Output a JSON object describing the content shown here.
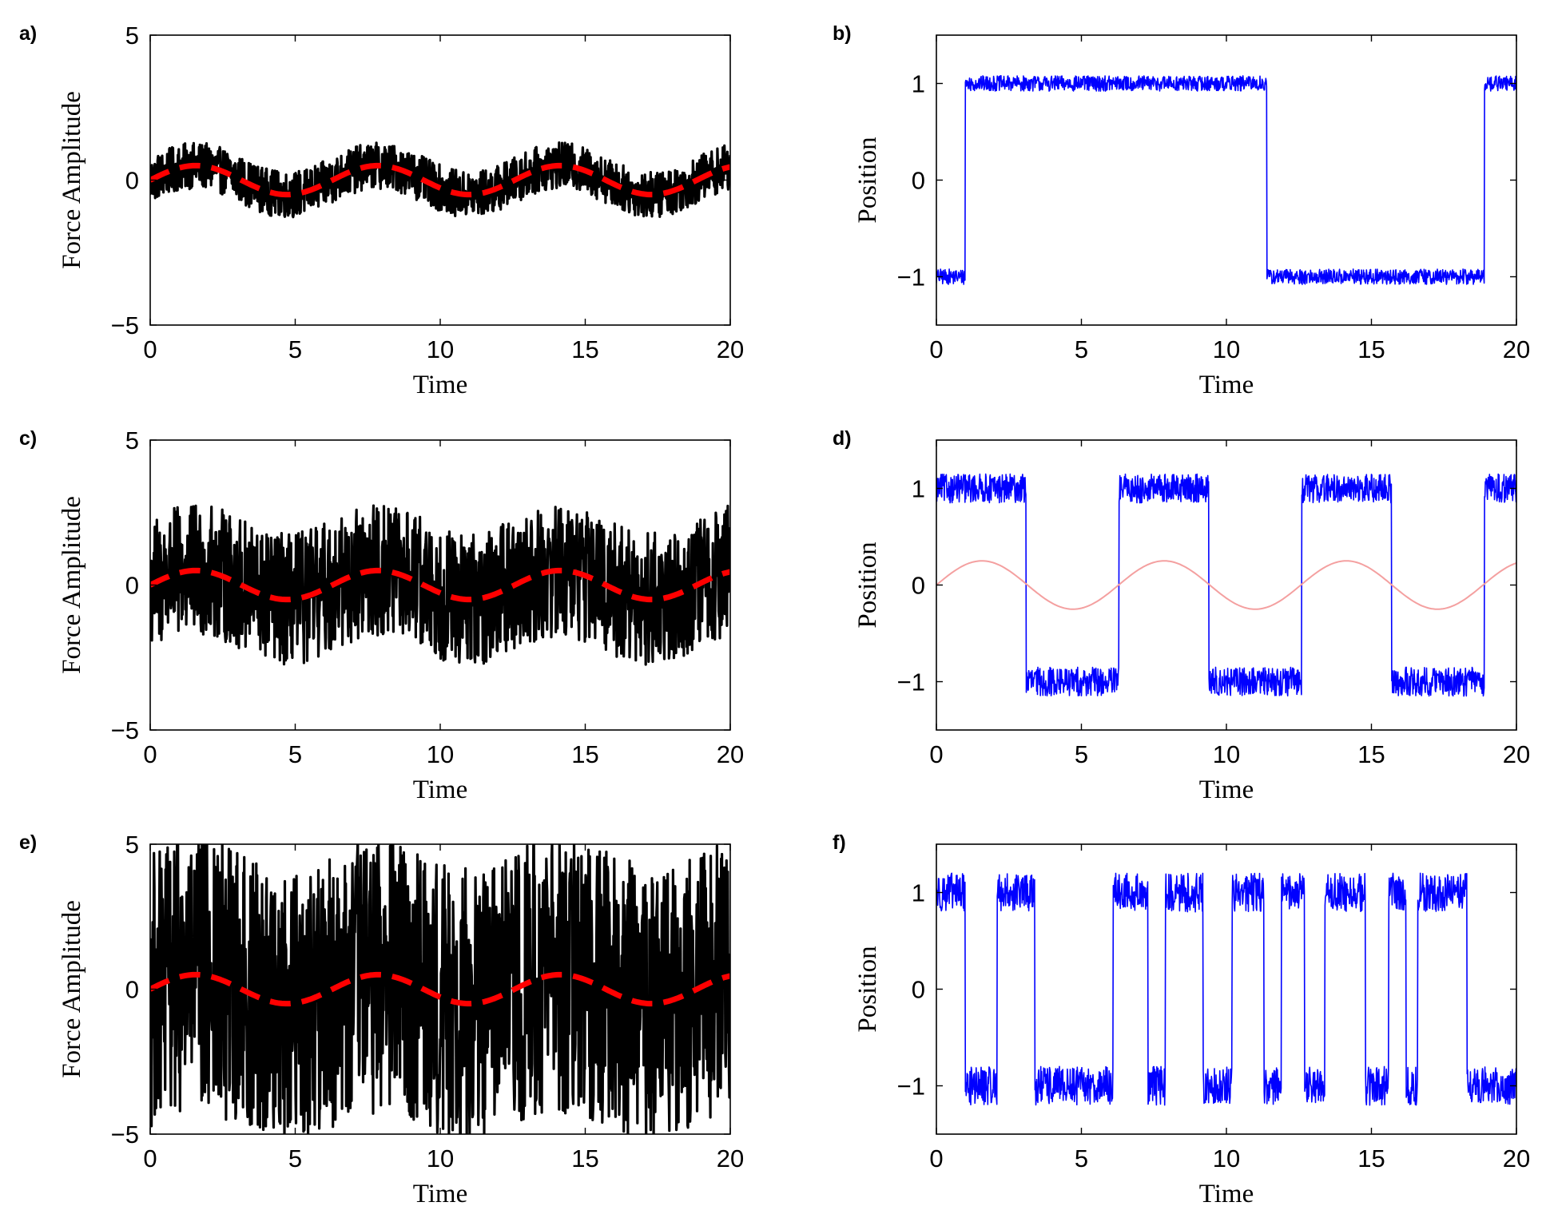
{
  "chart_data": [
    {
      "panel": "a)",
      "type": "line",
      "xlabel": "Time",
      "ylabel": "Force Amplitude",
      "xlim": [
        0,
        20
      ],
      "ylim": [
        -5,
        5
      ],
      "xticks": [
        "0",
        "5",
        "10",
        "15",
        "20"
      ],
      "yticks": [
        "5",
        "0",
        "−5"
      ],
      "grid": false,
      "series": [
        {
          "style": "noisy-line",
          "color": "#000000",
          "description_values": {
            "signal_amplitude": 0.5,
            "signal_period": 6.28,
            "noise_amplitude": 0.8
          }
        },
        {
          "style": "dashed",
          "color": "#ff0000",
          "function": "0.5*sin(t)",
          "x": [
            0,
            1.57,
            3.14,
            4.71,
            6.28,
            7.85,
            9.42,
            10.99,
            12.57,
            14.14,
            15.71,
            17.28,
            18.85,
            20
          ],
          "y": [
            0,
            0.5,
            0,
            -0.5,
            0,
            0.5,
            0,
            -0.5,
            0,
            0.5,
            0,
            -0.5,
            0,
            0.46
          ]
        }
      ]
    },
    {
      "panel": "b)",
      "type": "line",
      "xlabel": "Time",
      "ylabel": "Position",
      "xlim": [
        0,
        20
      ],
      "ylim": [
        -1.5,
        1.5
      ],
      "xticks": [
        "0",
        "5",
        "10",
        "15",
        "20"
      ],
      "yticks": [
        "1",
        "0",
        "−1"
      ],
      "grid": false,
      "series": [
        {
          "style": "line",
          "color": "#0000ff",
          "noise_amplitude": 0.08,
          "state_x": [
            0,
            1.0,
            11.4,
            18.9,
            20
          ],
          "state_y": [
            -1,
            1,
            -1,
            1,
            1
          ]
        }
      ]
    },
    {
      "panel": "c)",
      "type": "line",
      "xlabel": "Time",
      "ylabel": "Force Amplitude",
      "xlim": [
        0,
        20
      ],
      "ylim": [
        -5,
        5
      ],
      "xticks": [
        "0",
        "5",
        "10",
        "15",
        "20"
      ],
      "yticks": [
        "5",
        "0",
        "−5"
      ],
      "grid": false,
      "series": [
        {
          "style": "noisy-line",
          "color": "#000000",
          "description_values": {
            "signal_amplitude": 0.5,
            "signal_period": 6.28,
            "noise_amplitude": 2.3
          }
        },
        {
          "style": "dashed",
          "color": "#ff0000",
          "function": "0.5*sin(t)",
          "x": [
            0,
            1.57,
            3.14,
            4.71,
            6.28,
            7.85,
            9.42,
            10.99,
            12.57,
            14.14,
            15.71,
            17.28,
            18.85,
            20
          ],
          "y": [
            0,
            0.5,
            0,
            -0.5,
            0,
            0.5,
            0,
            -0.5,
            0,
            0.5,
            0,
            -0.5,
            0,
            0.46
          ]
        }
      ]
    },
    {
      "panel": "d)",
      "type": "line",
      "xlabel": "Time",
      "ylabel": "Position",
      "xlim": [
        0,
        20
      ],
      "ylim": [
        -1.5,
        1.5
      ],
      "xticks": [
        "0",
        "5",
        "10",
        "15",
        "20"
      ],
      "yticks": [
        "1",
        "0",
        "−1"
      ],
      "grid": false,
      "series": [
        {
          "style": "line",
          "color": "#0000ff",
          "noise_amplitude": 0.15,
          "state_x": [
            0,
            3.1,
            6.3,
            9.4,
            12.6,
            15.7,
            18.9,
            20
          ],
          "state_y": [
            1,
            -1,
            1,
            -1,
            1,
            -1,
            1,
            1
          ]
        },
        {
          "style": "line",
          "color": "#f4a0a0",
          "function": "0.25*sin(t)",
          "x": [
            0,
            1.57,
            3.14,
            4.71,
            6.28,
            7.85,
            9.42,
            10.99,
            12.57,
            14.14,
            15.71,
            17.28,
            18.85,
            20
          ],
          "y": [
            0,
            0.25,
            0,
            -0.25,
            0,
            0.25,
            0,
            -0.25,
            0,
            0.25,
            0,
            -0.25,
            0,
            0.23
          ]
        }
      ]
    },
    {
      "panel": "e)",
      "type": "line",
      "xlabel": "Time",
      "ylabel": "Force Amplitude",
      "xlim": [
        0,
        20
      ],
      "ylim": [
        -5,
        5
      ],
      "xticks": [
        "0",
        "5",
        "10",
        "15",
        "20"
      ],
      "yticks": [
        "5",
        "0",
        "−5"
      ],
      "grid": false,
      "series": [
        {
          "style": "noisy-line",
          "color": "#000000",
          "description_values": {
            "signal_amplitude": 0.5,
            "signal_period": 6.28,
            "noise_amplitude": 4.8
          }
        },
        {
          "style": "dashed",
          "color": "#ff0000",
          "function": "0.5*sin(t)",
          "x": [
            0,
            1.57,
            3.14,
            4.71,
            6.28,
            7.85,
            9.42,
            10.99,
            12.57,
            14.14,
            15.71,
            17.28,
            18.85,
            20
          ],
          "y": [
            0,
            0.5,
            0,
            -0.5,
            0,
            0.5,
            0,
            -0.5,
            0,
            0.5,
            0,
            -0.5,
            0,
            0.46
          ]
        }
      ]
    },
    {
      "panel": "f)",
      "type": "line",
      "xlabel": "Time",
      "ylabel": "Position",
      "xlim": [
        0,
        20
      ],
      "ylim": [
        -1.5,
        1.5
      ],
      "xticks": [
        "0",
        "5",
        "10",
        "15",
        "20"
      ],
      "yticks": [
        "1",
        "0",
        "−1"
      ],
      "grid": false,
      "series": [
        {
          "style": "line",
          "color": "#0000ff",
          "noise_amplitude": 0.2,
          "state_x": [
            0,
            1.0,
            2.1,
            3.4,
            6.1,
            7.3,
            7.9,
            9.2,
            10.2,
            11.3,
            11.9,
            12.7,
            13.4,
            14.8,
            15.6,
            16.2,
            16.6,
            18.3,
            20
          ],
          "state_y": [
            1,
            -1,
            1,
            -1,
            1,
            -1,
            1,
            -1,
            1,
            -1,
            1,
            -1,
            1,
            -1,
            1,
            -1,
            1,
            -1,
            -1
          ]
        }
      ]
    }
  ]
}
